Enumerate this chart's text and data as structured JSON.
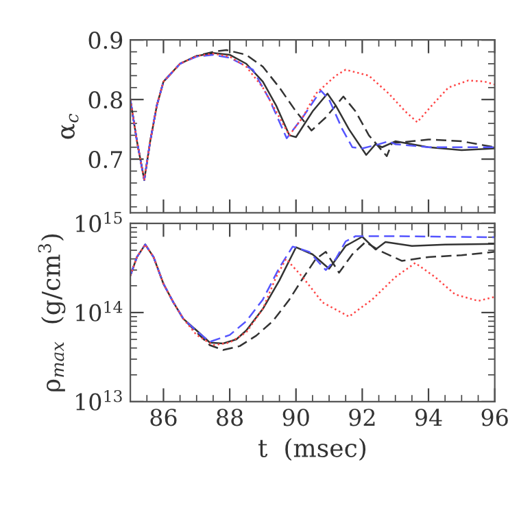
{
  "chart_data": [
    {
      "type": "line",
      "ylabel": "α$_{c}$",
      "xlim": [
        85,
        96
      ],
      "ylim": [
        0.61,
        0.9
      ],
      "xticks": [
        86,
        88,
        90,
        92,
        94,
        96
      ],
      "yticks": [
        0.7,
        0.8,
        0.9
      ],
      "tick_labels": "y",
      "grid": false,
      "series": [
        {
          "color": "#333333",
          "line_style": "solid",
          "x": [
            85,
            85.2,
            85.42,
            85.6,
            85.8,
            86,
            86.5,
            87,
            87.5,
            88,
            88.5,
            89,
            89.4,
            89.8,
            90,
            90.5,
            90.95,
            91.2,
            91.6,
            92.12,
            92.4,
            92.6,
            93,
            94,
            95,
            96
          ],
          "values": [
            0.8,
            0.73,
            0.665,
            0.73,
            0.79,
            0.83,
            0.86,
            0.873,
            0.878,
            0.875,
            0.86,
            0.83,
            0.79,
            0.74,
            0.737,
            0.78,
            0.81,
            0.79,
            0.75,
            0.707,
            0.725,
            0.72,
            0.73,
            0.72,
            0.715,
            0.718
          ]
        },
        {
          "color": "#333333",
          "line_style": "dashed",
          "x": [
            85,
            85.2,
            85.42,
            85.6,
            85.8,
            86,
            86.5,
            87,
            87.5,
            87.9,
            88.5,
            89,
            89.5,
            90,
            90.47,
            90.9,
            91.43,
            91.8,
            92.2,
            92.74,
            92.9,
            93.5,
            94,
            95,
            96
          ],
          "values": [
            0.8,
            0.73,
            0.665,
            0.73,
            0.79,
            0.83,
            0.86,
            0.873,
            0.88,
            0.883,
            0.875,
            0.855,
            0.82,
            0.78,
            0.748,
            0.77,
            0.805,
            0.78,
            0.74,
            0.705,
            0.727,
            0.73,
            0.733,
            0.73,
            0.72
          ]
        },
        {
          "color": "#5555ff",
          "line_style": "dashed",
          "x": [
            85,
            85.2,
            85.42,
            85.6,
            85.8,
            86,
            86.5,
            87,
            87.5,
            88,
            88.7,
            89.2,
            89.72,
            90.2,
            90.75,
            91,
            91.4,
            91.7,
            92,
            92.5,
            92.8,
            93,
            94,
            95,
            96
          ],
          "values": [
            0.8,
            0.73,
            0.665,
            0.73,
            0.79,
            0.83,
            0.86,
            0.872,
            0.875,
            0.87,
            0.85,
            0.8,
            0.735,
            0.77,
            0.815,
            0.8,
            0.75,
            0.72,
            0.718,
            0.725,
            0.73,
            0.725,
            0.72,
            0.72,
            0.72
          ]
        },
        {
          "color": "#ff4444",
          "line_style": "dotted",
          "x": [
            85,
            85.2,
            85.42,
            85.6,
            85.8,
            86,
            86.5,
            87,
            87.5,
            88,
            88.5,
            89,
            89.4,
            89.8,
            90.2,
            90.6,
            91.2,
            91.5,
            92.2,
            92.8,
            93.3,
            93.66,
            94.1,
            94.6,
            95.2,
            95.7,
            96
          ],
          "values": [
            0.8,
            0.73,
            0.665,
            0.73,
            0.79,
            0.83,
            0.86,
            0.873,
            0.877,
            0.872,
            0.855,
            0.82,
            0.78,
            0.74,
            0.77,
            0.81,
            0.84,
            0.85,
            0.84,
            0.81,
            0.78,
            0.762,
            0.79,
            0.82,
            0.832,
            0.83,
            0.825
          ]
        }
      ]
    },
    {
      "type": "line",
      "xlabel": "t  (msec)",
      "ylabel": "ρ$_{max}$  (g/cm$^{3}$)",
      "log": "y",
      "xlim": [
        85,
        96
      ],
      "ylim": [
        10000000000000.0,
        1000000000000000.0
      ],
      "xticks": [
        86,
        88,
        90,
        92,
        94,
        96
      ],
      "yticks": [
        {
          "value": 10000000000000.0,
          "label": "10$^{13}$"
        },
        {
          "value": 100000000000000.0,
          "label": "10$^{14}$"
        },
        {
          "value": 1000000000000000.0,
          "label": "10$^{15}$"
        }
      ],
      "grid": false,
      "series": [
        {
          "color": "#333333",
          "line_style": "solid",
          "x": [
            85,
            85.2,
            85.45,
            85.7,
            86,
            86.3,
            86.6,
            87,
            87.4,
            87.8,
            88.2,
            88.5,
            89,
            89.5,
            90,
            90.5,
            91,
            91.5,
            92,
            92.4,
            92.7,
            93.5,
            94.5,
            96
          ],
          "values": [
            260000000000000.0,
            420000000000000.0,
            580000000000000.0,
            420000000000000.0,
            210000000000000.0,
            130000000000000.0,
            85000000000000.0,
            63000000000000.0,
            46000000000000.0,
            45000000000000.0,
            50000000000000.0,
            63000000000000.0,
            110000000000000.0,
            230000000000000.0,
            540000000000000.0,
            450000000000000.0,
            310000000000000.0,
            560000000000000.0,
            710000000000000.0,
            510000000000000.0,
            620000000000000.0,
            560000000000000.0,
            580000000000000.0,
            590000000000000.0
          ]
        },
        {
          "color": "#333333",
          "line_style": "dashed",
          "x": [
            85,
            85.2,
            85.45,
            85.7,
            86,
            86.3,
            86.6,
            87,
            87.4,
            87.8,
            88.3,
            88.8,
            89.3,
            89.8,
            90.2,
            90.6,
            90.9,
            91.3,
            91.7,
            92.1,
            92.5,
            93.2,
            94,
            95,
            96
          ],
          "values": [
            260000000000000.0,
            420000000000000.0,
            580000000000000.0,
            420000000000000.0,
            210000000000000.0,
            130000000000000.0,
            85000000000000.0,
            60000000000000.0,
            43000000000000.0,
            38000000000000.0,
            42000000000000.0,
            55000000000000.0,
            80000000000000.0,
            140000000000000.0,
            240000000000000.0,
            400000000000000.0,
            480000000000000.0,
            280000000000000.0,
            450000000000000.0,
            620000000000000.0,
            500000000000000.0,
            380000000000000.0,
            420000000000000.0,
            440000000000000.0,
            480000000000000.0
          ]
        },
        {
          "color": "#5555ff",
          "line_style": "dashed",
          "x": [
            85,
            85.2,
            85.45,
            85.7,
            86,
            86.3,
            86.6,
            87,
            87.4,
            88,
            88.5,
            89,
            89.5,
            89.9,
            90.4,
            90.9,
            91.2,
            91.5,
            91.8,
            93,
            94.5,
            96
          ],
          "values": [
            260000000000000.0,
            420000000000000.0,
            580000000000000.0,
            420000000000000.0,
            210000000000000.0,
            130000000000000.0,
            85000000000000.0,
            62000000000000.0,
            47000000000000.0,
            56000000000000.0,
            80000000000000.0,
            140000000000000.0,
            320000000000000.0,
            550000000000000.0,
            480000000000000.0,
            300000000000000.0,
            400000000000000.0,
            630000000000000.0,
            720000000000000.0,
            720000000000000.0,
            710000000000000.0,
            700000000000000.0
          ]
        },
        {
          "color": "#ff4444",
          "line_style": "dotted",
          "x": [
            85,
            85.2,
            85.45,
            85.7,
            86,
            86.3,
            86.6,
            87,
            87.5,
            88,
            88.5,
            89,
            89.4,
            89.7,
            90.2,
            90.8,
            91.6,
            92.3,
            93,
            93.6,
            94.2,
            94.8,
            95.5,
            96
          ],
          "values": [
            260000000000000.0,
            420000000000000.0,
            580000000000000.0,
            420000000000000.0,
            210000000000000.0,
            130000000000000.0,
            85000000000000.0,
            56000000000000.0,
            43000000000000.0,
            46000000000000.0,
            60000000000000.0,
            110000000000000.0,
            250000000000000.0,
            400000000000000.0,
            250000000000000.0,
            130000000000000.0,
            90000000000000.0,
            140000000000000.0,
            250000000000000.0,
            360000000000000.0,
            250000000000000.0,
            160000000000000.0,
            135000000000000.0,
            150000000000000.0
          ]
        }
      ]
    }
  ]
}
